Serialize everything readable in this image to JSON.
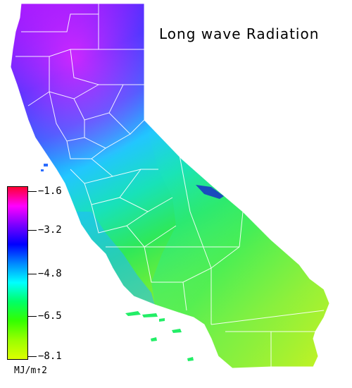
{
  "title": "Long wave Radiation",
  "legend": {
    "unit": "MJ/m↑2",
    "ticks": [
      "−1.6",
      "−3.2",
      "−4.8",
      "−6.5",
      "−8.1"
    ],
    "colors_top_to_bottom": [
      "#ff0033",
      "#ff00ff",
      "#7a00ff",
      "#0000ff",
      "#0088ff",
      "#00ffff",
      "#00ff66",
      "#33ff00",
      "#99ff00",
      "#ddff00"
    ]
  },
  "map": {
    "region": "California",
    "palette": {
      "north": "#7a1fff",
      "northwest": "#dd22ff",
      "central": "#2a3cff",
      "coast": "#22aaff",
      "sierra": "#16e6dd",
      "valley_south": "#33ee66",
      "south": "#7df222",
      "desert": "#c8f220"
    }
  }
}
